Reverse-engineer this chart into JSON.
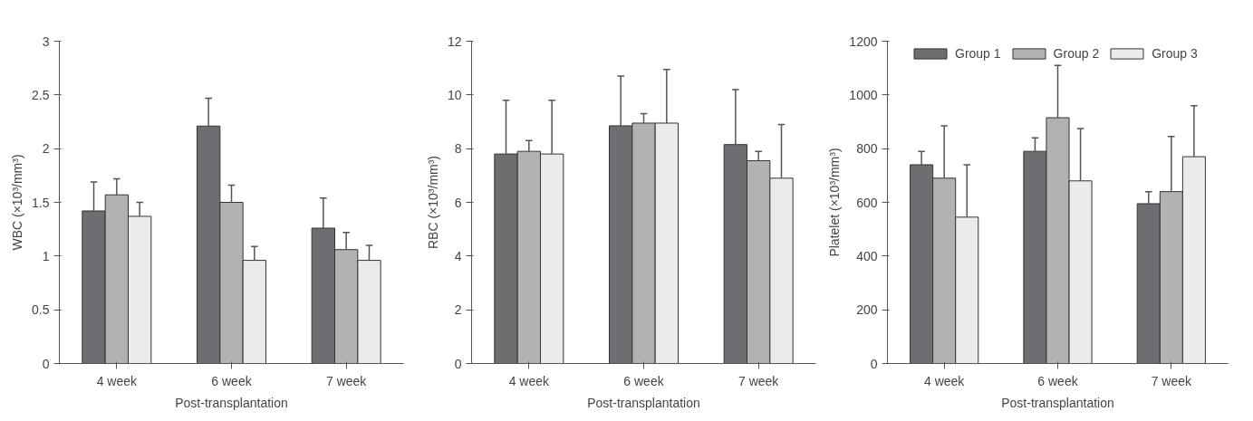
{
  "chart_data": [
    {
      "type": "bar",
      "xlabel": "Post-transplantation",
      "ylabel": "WBC (×10³/mm³)",
      "categories": [
        "4 week",
        "6 week",
        "7 week"
      ],
      "ylim": [
        0,
        3
      ],
      "yticks": [
        0,
        {
          "value": 0.5,
          "label": "0.5"
        },
        1,
        {
          "value": 1.5,
          "label": "1.5"
        },
        2,
        {
          "value": 2.5,
          "label": "2.5"
        },
        3
      ],
      "grid": false,
      "series": [
        {
          "color": "#6d6e71",
          "values": [
            1.42,
            2.21,
            1.26
          ],
          "errors": [
            [
              1.42,
              1.69
            ],
            [
              2.21,
              2.47
            ],
            [
              1.26,
              1.54
            ]
          ]
        },
        {
          "color": "#b1b2b4",
          "values": [
            1.57,
            1.5,
            1.06
          ],
          "errors": [
            [
              1.57,
              1.72
            ],
            [
              1.5,
              1.66
            ],
            [
              1.06,
              1.22
            ]
          ]
        },
        {
          "color": "#ebebeb",
          "values": [
            1.37,
            0.96,
            0.96
          ],
          "errors": [
            [
              1.37,
              1.5
            ],
            [
              0.96,
              1.09
            ],
            [
              0.96,
              1.1
            ]
          ]
        }
      ]
    },
    {
      "type": "bar",
      "xlabel": "Post-transplantation",
      "ylabel": "RBC (×10³/mm³)",
      "categories": [
        "4 week",
        "6 week",
        "7 week"
      ],
      "ylim": [
        0,
        12
      ],
      "yticks": [
        0,
        2,
        4,
        6,
        8,
        10,
        12
      ],
      "grid": false,
      "series": [
        {
          "color": "#6d6e71",
          "values": [
            7.8,
            8.85,
            8.15
          ],
          "errors": [
            [
              7.8,
              9.8
            ],
            [
              8.85,
              10.7
            ],
            [
              8.15,
              10.2
            ]
          ]
        },
        {
          "color": "#b1b2b4",
          "values": [
            7.9,
            8.95,
            7.55
          ],
          "errors": [
            [
              7.9,
              8.3
            ],
            [
              8.95,
              9.3
            ],
            [
              7.55,
              7.9
            ]
          ]
        },
        {
          "color": "#ebebeb",
          "values": [
            7.8,
            8.95,
            6.9
          ],
          "errors": [
            [
              7.8,
              9.8
            ],
            [
              8.95,
              10.95
            ],
            [
              6.9,
              8.9
            ]
          ]
        }
      ]
    },
    {
      "type": "bar",
      "xlabel": "Post-transplantation",
      "ylabel": "Platelet (×10³/mm³)",
      "categories": [
        "4 week",
        "6 week",
        "7 week"
      ],
      "ylim": [
        0,
        1200
      ],
      "yticks": [
        0,
        200,
        400,
        600,
        800,
        1000,
        1200
      ],
      "grid": false,
      "legend": "top right",
      "series": [
        {
          "name": "Group 1",
          "color": "#6d6e71",
          "values": [
            740,
            790,
            595
          ],
          "errors": [
            [
              740,
              790
            ],
            [
              790,
              840
            ],
            [
              595,
              640
            ]
          ]
        },
        {
          "name": "Group 2",
          "color": "#b1b2b4",
          "values": [
            690,
            915,
            640
          ],
          "errors": [
            [
              690,
              885
            ],
            [
              915,
              1110
            ],
            [
              640,
              845
            ]
          ]
        },
        {
          "name": "Group 3",
          "color": "#ebebeb",
          "values": [
            545,
            680,
            770
          ],
          "errors": [
            [
              545,
              740
            ],
            [
              680,
              875
            ],
            [
              770,
              960
            ]
          ]
        }
      ]
    }
  ]
}
